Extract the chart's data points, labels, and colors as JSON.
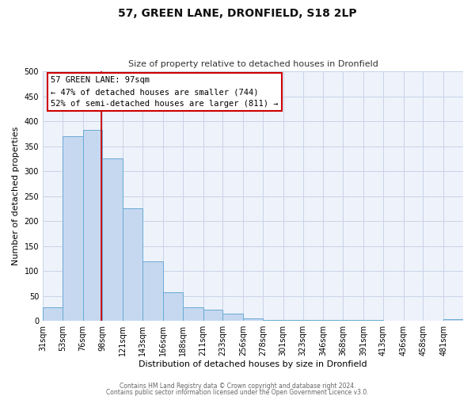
{
  "title": "57, GREEN LANE, DRONFIELD, S18 2LP",
  "subtitle": "Size of property relative to detached houses in Dronfield",
  "xlabel": "Distribution of detached houses by size in Dronfield",
  "ylabel": "Number of detached properties",
  "bar_labels": [
    "31sqm",
    "53sqm",
    "76sqm",
    "98sqm",
    "121sqm",
    "143sqm",
    "166sqm",
    "188sqm",
    "211sqm",
    "233sqm",
    "256sqm",
    "278sqm",
    "301sqm",
    "323sqm",
    "346sqm",
    "368sqm",
    "391sqm",
    "413sqm",
    "436sqm",
    "458sqm",
    "481sqm"
  ],
  "bar_values": [
    27,
    370,
    383,
    325,
    225,
    120,
    58,
    27,
    22,
    15,
    5,
    2,
    2,
    2,
    2,
    2,
    2,
    0,
    0,
    0,
    3
  ],
  "bin_edges": [
    31,
    53,
    76,
    98,
    121,
    143,
    166,
    188,
    211,
    233,
    256,
    278,
    301,
    323,
    346,
    368,
    391,
    413,
    436,
    458,
    481,
    503
  ],
  "bar_color": "#c5d8f0",
  "bar_edge_color": "#6aaad4",
  "vline_x": 97,
  "vline_color": "#cc0000",
  "annotation_title": "57 GREEN LANE: 97sqm",
  "annotation_line1": "← 47% of detached houses are smaller (744)",
  "annotation_line2": "52% of semi-detached houses are larger (811) →",
  "annotation_box_color": "#ffffff",
  "annotation_box_edge_color": "#cc0000",
  "ylim": [
    0,
    500
  ],
  "yticks": [
    0,
    50,
    100,
    150,
    200,
    250,
    300,
    350,
    400,
    450,
    500
  ],
  "footer1": "Contains HM Land Registry data © Crown copyright and database right 2024.",
  "footer2": "Contains public sector information licensed under the Open Government Licence v3.0.",
  "bg_color": "#eef2fa",
  "grid_color": "#c8d4e8",
  "title_fontsize": 10,
  "subtitle_fontsize": 8,
  "axis_label_fontsize": 8,
  "tick_fontsize": 7,
  "footer_fontsize": 5.5,
  "ann_fontsize": 7.5
}
